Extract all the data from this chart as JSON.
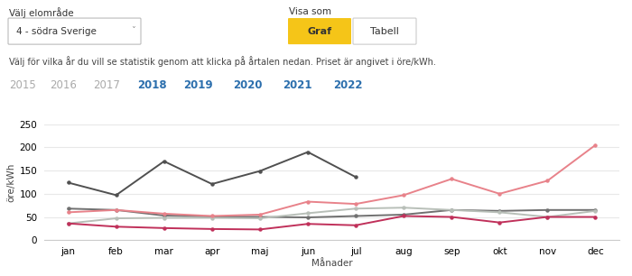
{
  "months": [
    "jan",
    "feb",
    "mar",
    "apr",
    "maj",
    "jun",
    "jul",
    "aug",
    "sep",
    "okt",
    "nov",
    "dec"
  ],
  "series": {
    "2020": [
      36,
      29,
      26,
      24,
      23,
      35,
      32,
      52,
      50,
      38,
      50,
      50
    ],
    "2021": [
      60,
      65,
      57,
      52,
      55,
      83,
      78,
      97,
      132,
      100,
      128,
      205
    ],
    "2022": [
      124,
      97,
      170,
      121,
      149,
      190,
      136,
      null,
      null,
      null,
      null,
      null
    ],
    "2019": [
      68,
      65,
      53,
      51,
      50,
      49,
      52,
      55,
      65,
      63,
      65,
      65
    ],
    "2018": [
      36,
      47,
      48,
      48,
      47,
      58,
      68,
      70,
      65,
      60,
      50,
      63
    ]
  },
  "colors": {
    "2020": "#c0305a",
    "2021": "#e8828a",
    "2022": "#505050",
    "2019": "#707070",
    "2018": "#b8bfb8"
  },
  "ylabel": "öre/kWh",
  "xlabel": "Månader",
  "ylim": [
    0,
    250
  ],
  "yticks": [
    0,
    50,
    100,
    150,
    200,
    250
  ],
  "header_label_valj": "Välj elområde",
  "header_dropdown": "4 - södra Sverige",
  "header_visa_som": "Visa som",
  "header_graf": "Graf",
  "header_tabell": "Tabell",
  "subtext": "Välj för vilka år du vill se statistik genom att klicka på årtalen nedan. Priset är angivet i öre/kWh.",
  "years_row": [
    "2015",
    "2016",
    "2017",
    "2018",
    "2019",
    "2020",
    "2021",
    "2022"
  ],
  "years_highlighted": [
    "2018",
    "2019",
    "2020",
    "2021",
    "2022"
  ],
  "bg_color": "#ffffff",
  "legend_order": [
    "2020",
    "2021",
    "2022",
    "2019",
    "2018"
  ],
  "year_colors": {
    "2015": "#aaaaaa",
    "2016": "#aaaaaa",
    "2017": "#aaaaaa",
    "2018": "#2c6fad",
    "2019": "#2c6fad",
    "2020": "#2c6fad",
    "2021": "#2c6fad",
    "2022": "#2c6fad"
  }
}
